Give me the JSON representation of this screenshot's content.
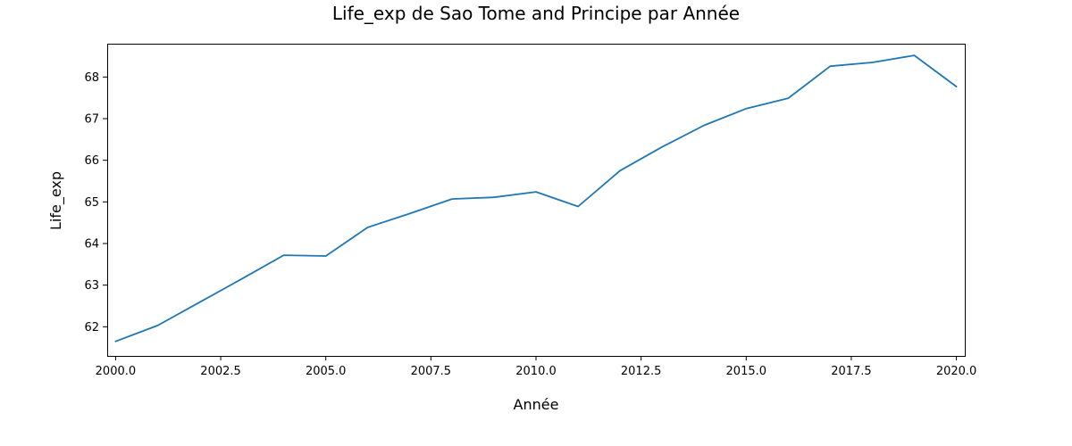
{
  "chart_data": {
    "type": "line",
    "title": "Life_exp de Sao Tome and Principe par Année",
    "xlabel": "Année",
    "ylabel": "Life_exp",
    "xlim": [
      1999.8,
      2020.2
    ],
    "ylim": [
      61.3,
      68.8
    ],
    "xticks": [
      2000.0,
      2002.5,
      2005.0,
      2007.5,
      2010.0,
      2012.5,
      2015.0,
      2017.5,
      2020.0
    ],
    "xtick_labels": [
      "2000.0",
      "2002.5",
      "2005.0",
      "2007.5",
      "2010.0",
      "2012.5",
      "2015.0",
      "2017.5",
      "2020.0"
    ],
    "yticks": [
      62,
      63,
      64,
      65,
      66,
      67,
      68
    ],
    "ytick_labels": [
      "62",
      "63",
      "64",
      "65",
      "66",
      "67",
      "68"
    ],
    "grid": false,
    "series": [
      {
        "color": "#1f77b4",
        "x": [
          2000,
          2001,
          2002,
          2003,
          2004,
          2005,
          2006,
          2007,
          2008,
          2009,
          2010,
          2011,
          2012,
          2013,
          2014,
          2015,
          2016,
          2017,
          2018,
          2019,
          2020
        ],
        "y": [
          61.65,
          62.03,
          62.59,
          63.15,
          63.72,
          63.7,
          64.39,
          64.72,
          65.07,
          65.11,
          65.24,
          64.89,
          65.75,
          66.32,
          66.84,
          67.24,
          67.49,
          68.26,
          68.35,
          68.52,
          67.77
        ]
      }
    ]
  }
}
